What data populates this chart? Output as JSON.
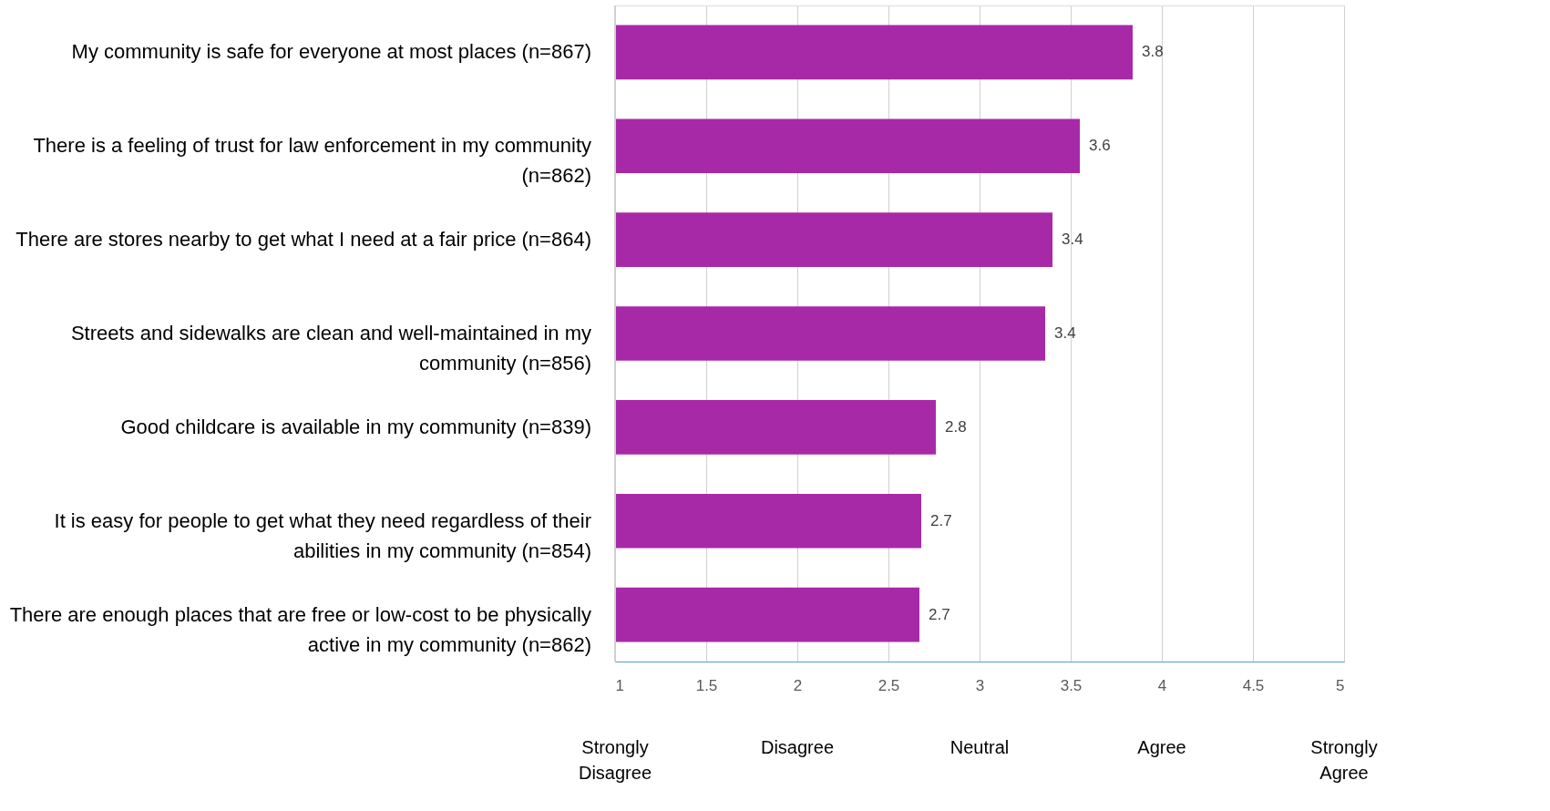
{
  "chart_data": {
    "type": "bar",
    "orientation": "horizontal",
    "categories": [
      "My community is safe for everyone at most places (n=867)",
      "There is a feeling of trust for law enforcement in my community (n=862)",
      "There are stores nearby to get what I need at a fair price (n=864)",
      "Streets and sidewalks are clean and well-maintained in my community (n=856)",
      "Good childcare is available in my community (n=839)",
      "It is easy for people to get what they need regardless of their abilities in my community (n=854)",
      "There are enough places that are free or low-cost to be physically active in my community (n=862)"
    ],
    "values": [
      3.84,
      3.55,
      3.4,
      3.36,
      2.76,
      2.68,
      2.67
    ],
    "value_labels": [
      "3.8",
      "3.6",
      "3.4",
      "3.4",
      "2.8",
      "2.7",
      "2.7"
    ],
    "color": "#a829a8",
    "xlim": [
      1,
      5
    ],
    "xticks": [
      1,
      1.5,
      2,
      2.5,
      3,
      3.5,
      4,
      4.5,
      5
    ],
    "grid": "x",
    "annotations": [
      "Strongly Disagree",
      "Disagree",
      "Neutral",
      "Agree",
      "Strongly Agree"
    ]
  }
}
